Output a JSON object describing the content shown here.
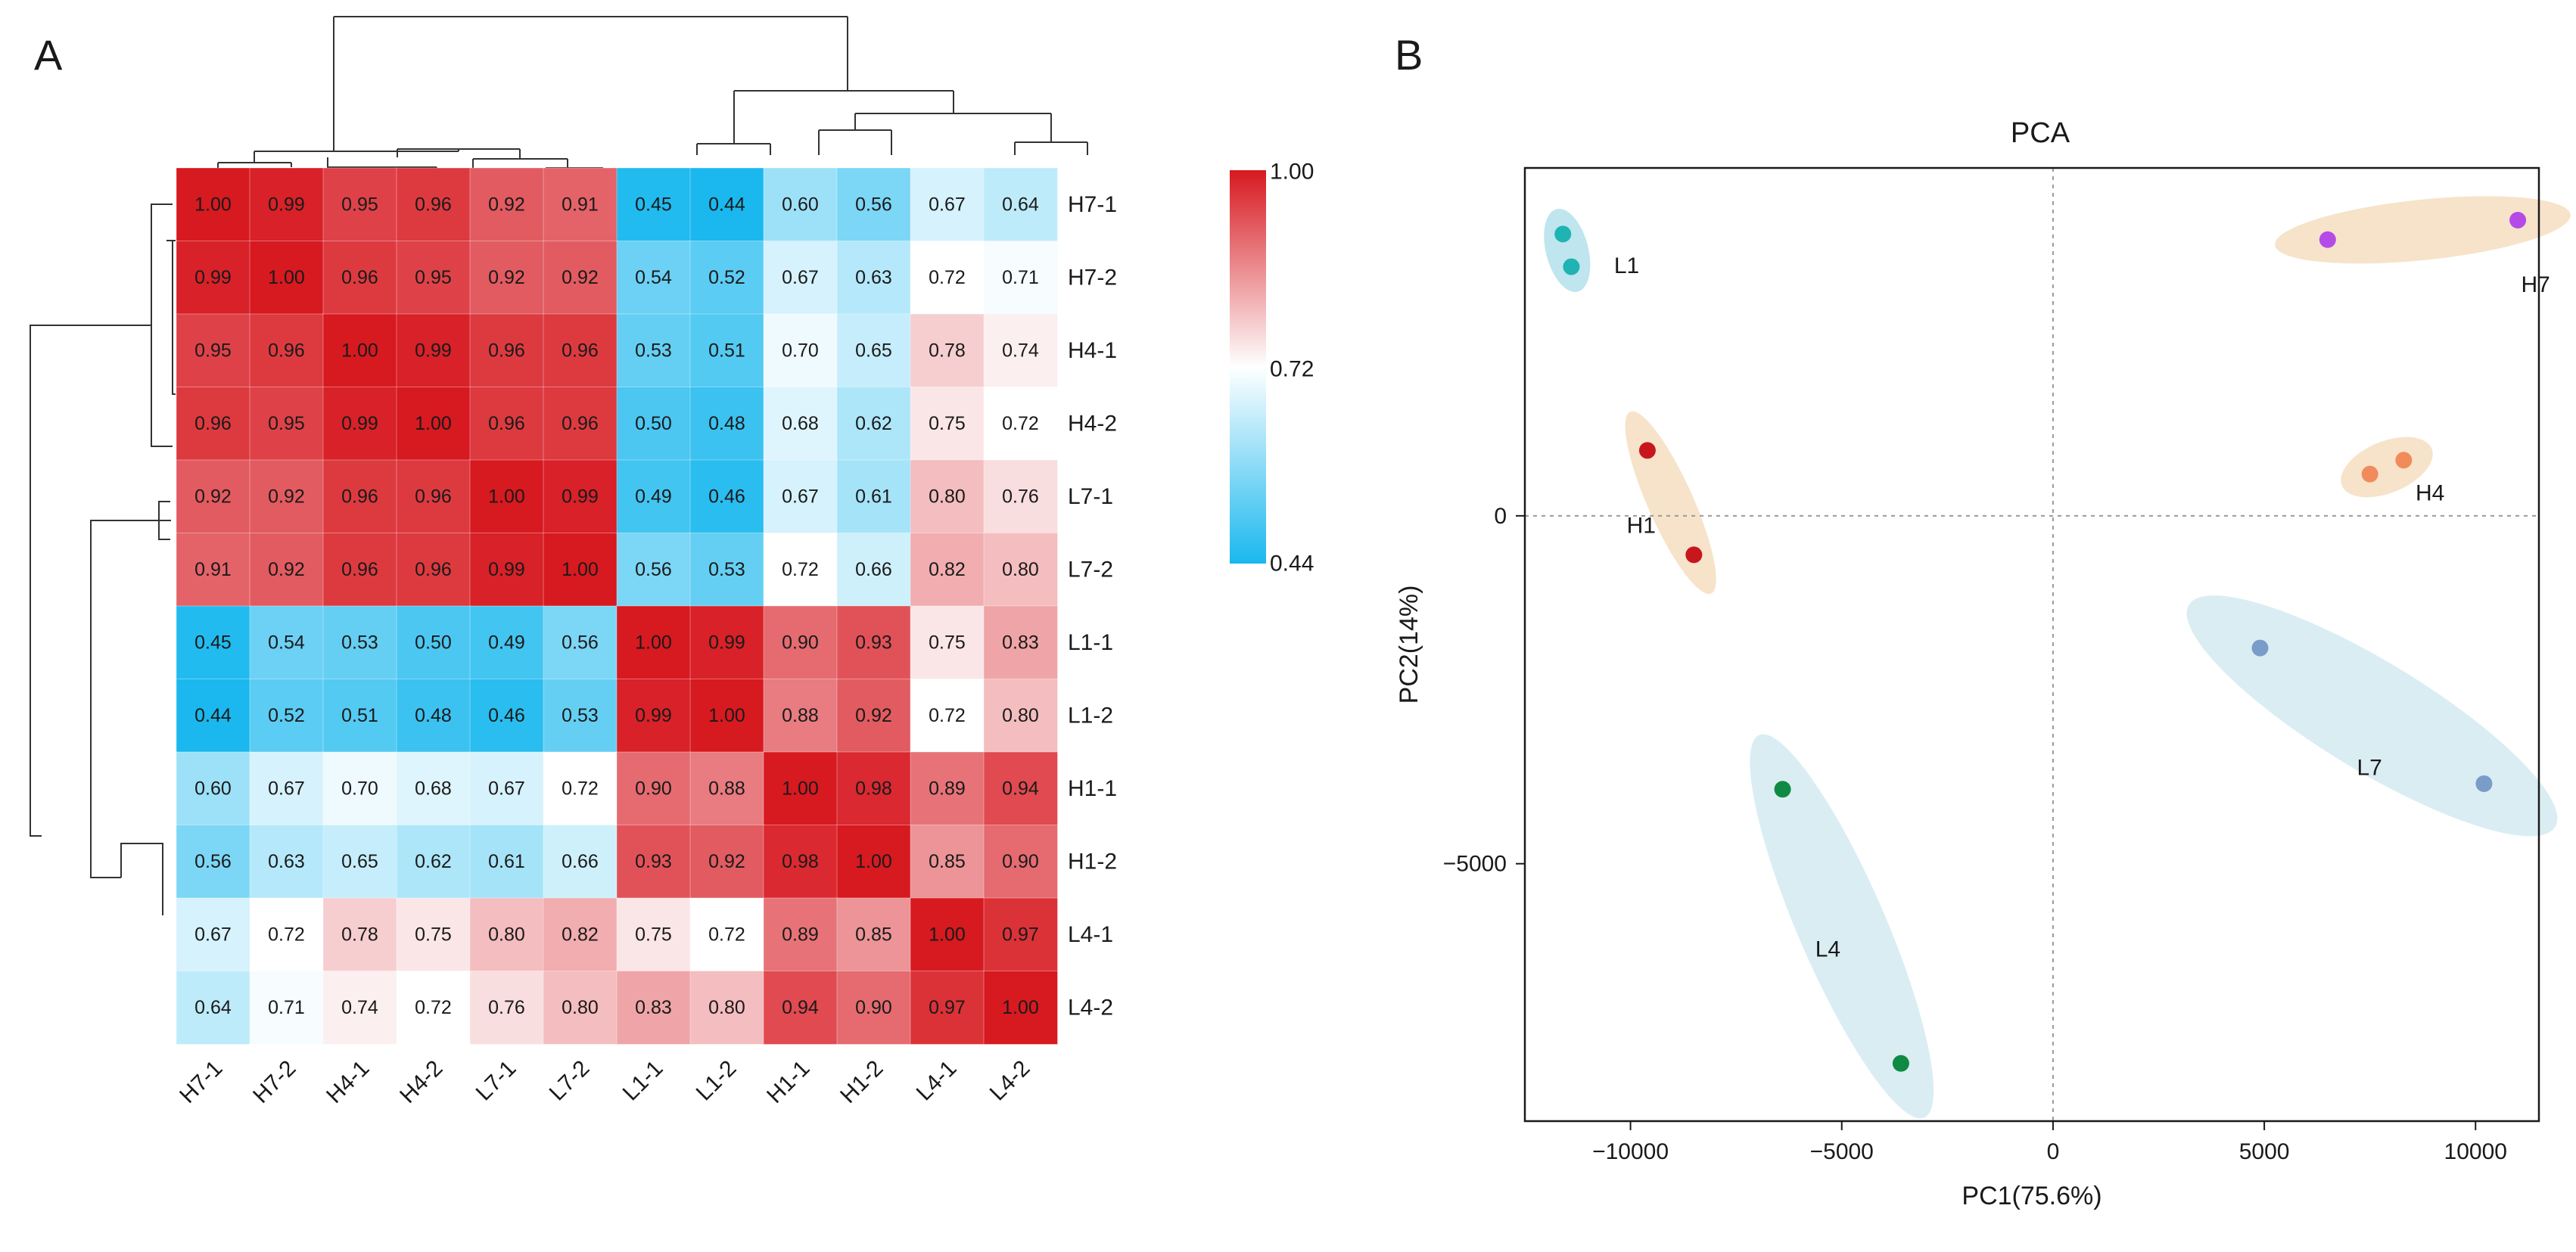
{
  "panel_a_letter": "A",
  "panel_b_letter": "B",
  "chart_data": [
    {
      "type": "heatmap",
      "title": "",
      "labels": [
        "H7-1",
        "H7-2",
        "H4-1",
        "H4-2",
        "L7-1",
        "L7-2",
        "L1-1",
        "L1-2",
        "H1-1",
        "H1-2",
        "L4-1",
        "L4-2"
      ],
      "values": [
        [
          1.0,
          0.99,
          0.95,
          0.96,
          0.92,
          0.91,
          0.45,
          0.44,
          0.6,
          0.56,
          0.67,
          0.64
        ],
        [
          0.99,
          1.0,
          0.96,
          0.95,
          0.92,
          0.92,
          0.54,
          0.52,
          0.67,
          0.63,
          0.72,
          0.71
        ],
        [
          0.95,
          0.96,
          1.0,
          0.99,
          0.96,
          0.96,
          0.53,
          0.51,
          0.7,
          0.65,
          0.78,
          0.74
        ],
        [
          0.96,
          0.95,
          0.99,
          1.0,
          0.96,
          0.96,
          0.5,
          0.48,
          0.68,
          0.62,
          0.75,
          0.72
        ],
        [
          0.92,
          0.92,
          0.96,
          0.96,
          1.0,
          0.99,
          0.49,
          0.46,
          0.67,
          0.61,
          0.8,
          0.76
        ],
        [
          0.91,
          0.92,
          0.96,
          0.96,
          0.99,
          1.0,
          0.56,
          0.53,
          0.72,
          0.66,
          0.82,
          0.8
        ],
        [
          0.45,
          0.54,
          0.53,
          0.5,
          0.49,
          0.56,
          1.0,
          0.99,
          0.9,
          0.93,
          0.75,
          0.83
        ],
        [
          0.44,
          0.52,
          0.51,
          0.48,
          0.46,
          0.53,
          0.99,
          1.0,
          0.88,
          0.92,
          0.72,
          0.8
        ],
        [
          0.6,
          0.67,
          0.7,
          0.68,
          0.67,
          0.72,
          0.9,
          0.88,
          1.0,
          0.98,
          0.89,
          0.94
        ],
        [
          0.56,
          0.63,
          0.65,
          0.62,
          0.61,
          0.66,
          0.93,
          0.92,
          0.98,
          1.0,
          0.85,
          0.9
        ],
        [
          0.67,
          0.72,
          0.78,
          0.75,
          0.8,
          0.82,
          0.75,
          0.72,
          0.89,
          0.85,
          1.0,
          0.97
        ],
        [
          0.64,
          0.71,
          0.74,
          0.72,
          0.76,
          0.8,
          0.83,
          0.8,
          0.94,
          0.9,
          0.97,
          1.0
        ]
      ],
      "color_scale": {
        "min": 0.44,
        "mid": 0.72,
        "max": 1.0,
        "min_label": "0.44",
        "mid_label": "0.72",
        "max_label": "1.00",
        "min_color": "#1ab8ee",
        "mid_color": "#ffffff",
        "max_color": "#d71920"
      },
      "dendrogram": "hierarchical clustering shown on rows and columns"
    },
    {
      "type": "scatter",
      "title": "PCA",
      "xlabel": "PC1(75.6%)",
      "ylabel": "PC2(14%)",
      "xlim": [
        -12500,
        11500
      ],
      "ylim": [
        -8700,
        5000
      ],
      "xticks": [
        -10000,
        -5000,
        0,
        5000,
        10000
      ],
      "xtick_labels": [
        "−10000",
        "−5000",
        "0",
        "5000",
        "10000"
      ],
      "yticks": [
        -5000,
        0
      ],
      "ytick_labels": [
        "−5000",
        "0"
      ],
      "reference_lines": {
        "x": 0,
        "y": 0
      },
      "groups": [
        {
          "name": "L1",
          "color": "#1fb3b3",
          "ellipse_color": "#a9dce8",
          "points": [
            {
              "x": -11600,
              "y": 4050
            },
            {
              "x": -11400,
              "y": 3580
            }
          ]
        },
        {
          "name": "H7",
          "color": "#b54be6",
          "ellipse_color": "#f3d9b8",
          "points": [
            {
              "x": 6500,
              "y": 3970
            },
            {
              "x": 11000,
              "y": 4250
            }
          ]
        },
        {
          "name": "H1",
          "color": "#c8161d",
          "ellipse_color": "#f3d9b8",
          "points": [
            {
              "x": -9600,
              "y": 940
            },
            {
              "x": -8500,
              "y": -560
            }
          ]
        },
        {
          "name": "H4",
          "color": "#f28b5b",
          "ellipse_color": "#f3d9b8",
          "points": [
            {
              "x": 7500,
              "y": 600
            },
            {
              "x": 8300,
              "y": 800
            }
          ]
        },
        {
          "name": "L7",
          "color": "#7a9cc9",
          "ellipse_color": "#cde7ef",
          "points": [
            {
              "x": 4900,
              "y": -1900
            },
            {
              "x": 10200,
              "y": -3850
            }
          ]
        },
        {
          "name": "L4",
          "color": "#0f8a43",
          "ellipse_color": "#cde7ef",
          "points": [
            {
              "x": -6400,
              "y": -3930
            },
            {
              "x": -3600,
              "y": -7870
            }
          ]
        }
      ]
    }
  ]
}
